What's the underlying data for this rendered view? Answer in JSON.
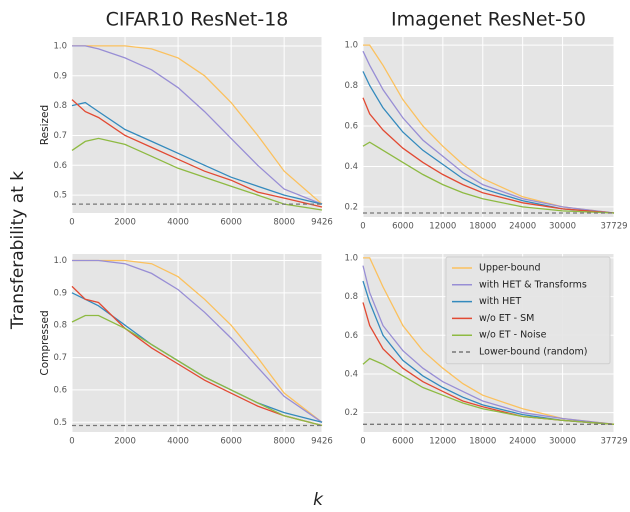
{
  "ylabel": "Transferability at k",
  "xlabel": "k",
  "chart_data": [
    {
      "type": "line",
      "title": "CIFAR10 ResNet-18",
      "ylabel": "Resized",
      "grid": true,
      "x": [
        0,
        500,
        1000,
        2000,
        3000,
        4000,
        5000,
        6000,
        7000,
        8000,
        9426
      ],
      "xlim": [
        0,
        9426
      ],
      "xticks": [
        0,
        2000,
        4000,
        6000,
        8000,
        9426
      ],
      "ylim": [
        0.44,
        1.03
      ],
      "yticks": [
        0.5,
        0.6,
        0.7,
        0.8,
        0.9,
        {
          "value": 1,
          "label": "1.0"
        }
      ],
      "series": [
        {
          "color": "#FBC15E",
          "values": [
            1.0,
            1.0,
            1.0,
            1.0,
            0.99,
            0.96,
            0.9,
            0.81,
            0.7,
            0.58,
            0.47
          ]
        },
        {
          "color": "#988ED5",
          "values": [
            1.0,
            1.0,
            0.99,
            0.96,
            0.92,
            0.86,
            0.78,
            0.69,
            0.6,
            0.52,
            0.47
          ]
        },
        {
          "color": "#348ABD",
          "values": [
            0.8,
            0.81,
            0.78,
            0.72,
            0.68,
            0.64,
            0.6,
            0.56,
            0.53,
            0.5,
            0.47
          ]
        },
        {
          "color": "#E24A33",
          "values": [
            0.82,
            0.78,
            0.76,
            0.7,
            0.66,
            0.62,
            0.58,
            0.55,
            0.51,
            0.49,
            0.46
          ]
        },
        {
          "color": "#8EBA42",
          "values": [
            0.65,
            0.68,
            0.69,
            0.67,
            0.63,
            0.59,
            0.56,
            0.53,
            0.5,
            0.47,
            0.45
          ]
        },
        {
          "color": "#777777",
          "dashed": true,
          "values": [
            0.47,
            0.47,
            0.47,
            0.47,
            0.47,
            0.47,
            0.47,
            0.47,
            0.47,
            0.47,
            0.47
          ]
        }
      ]
    },
    {
      "type": "line",
      "title": "Imagenet ResNet-50",
      "grid": true,
      "x": [
        0,
        1000,
        3000,
        6000,
        9000,
        12000,
        15000,
        18000,
        24000,
        30000,
        37729
      ],
      "xlim": [
        0,
        37729
      ],
      "xticks": [
        0,
        6000,
        12000,
        18000,
        24000,
        30000,
        37729
      ],
      "ylim": [
        0.15,
        1.04
      ],
      "yticks": [
        0.2,
        0.4,
        0.6,
        0.8,
        {
          "value": 1,
          "label": "1.0"
        }
      ],
      "series": [
        {
          "color": "#FBC15E",
          "values": [
            1.0,
            1.0,
            0.9,
            0.73,
            0.6,
            0.5,
            0.41,
            0.34,
            0.25,
            0.2,
            0.17
          ]
        },
        {
          "color": "#988ED5",
          "values": [
            0.97,
            0.9,
            0.78,
            0.64,
            0.53,
            0.45,
            0.37,
            0.31,
            0.24,
            0.2,
            0.17
          ]
        },
        {
          "color": "#348ABD",
          "values": [
            0.87,
            0.8,
            0.69,
            0.57,
            0.48,
            0.41,
            0.34,
            0.29,
            0.23,
            0.19,
            0.17
          ]
        },
        {
          "color": "#E24A33",
          "values": [
            0.74,
            0.66,
            0.58,
            0.49,
            0.42,
            0.36,
            0.31,
            0.27,
            0.22,
            0.19,
            0.17
          ]
        },
        {
          "color": "#8EBA42",
          "values": [
            0.5,
            0.52,
            0.48,
            0.42,
            0.36,
            0.31,
            0.27,
            0.24,
            0.2,
            0.18,
            0.17
          ]
        },
        {
          "color": "#777777",
          "dashed": true,
          "values": [
            0.17,
            0.17,
            0.17,
            0.17,
            0.17,
            0.17,
            0.17,
            0.17,
            0.17,
            0.17,
            0.17
          ]
        }
      ]
    },
    {
      "type": "line",
      "ylabel": "Compressed",
      "grid": true,
      "x": [
        0,
        500,
        1000,
        2000,
        3000,
        4000,
        5000,
        6000,
        7000,
        8000,
        9426
      ],
      "xlim": [
        0,
        9426
      ],
      "xticks": [
        0,
        2000,
        4000,
        6000,
        8000,
        9426
      ],
      "ylim": [
        0.47,
        1.02
      ],
      "yticks": [
        0.5,
        0.6,
        0.7,
        0.8,
        0.9,
        {
          "value": 1,
          "label": "1.0"
        }
      ],
      "series": [
        {
          "color": "#FBC15E",
          "values": [
            1.0,
            1.0,
            1.0,
            1.0,
            0.99,
            0.95,
            0.88,
            0.8,
            0.7,
            0.59,
            0.5
          ]
        },
        {
          "color": "#988ED5",
          "values": [
            1.0,
            1.0,
            1.0,
            0.99,
            0.96,
            0.91,
            0.84,
            0.76,
            0.67,
            0.58,
            0.5
          ]
        },
        {
          "color": "#348ABD",
          "values": [
            0.9,
            0.88,
            0.86,
            0.8,
            0.74,
            0.69,
            0.64,
            0.6,
            0.56,
            0.53,
            0.5
          ]
        },
        {
          "color": "#E24A33",
          "values": [
            0.92,
            0.88,
            0.87,
            0.79,
            0.73,
            0.68,
            0.63,
            0.59,
            0.55,
            0.52,
            0.49
          ]
        },
        {
          "color": "#8EBA42",
          "values": [
            0.81,
            0.83,
            0.83,
            0.79,
            0.74,
            0.69,
            0.64,
            0.6,
            0.56,
            0.52,
            0.49
          ]
        },
        {
          "color": "#777777",
          "dashed": true,
          "values": [
            0.49,
            0.49,
            0.49,
            0.49,
            0.49,
            0.49,
            0.49,
            0.49,
            0.49,
            0.49,
            0.49
          ]
        }
      ]
    },
    {
      "type": "line",
      "grid": true,
      "legend": "upper right",
      "x": [
        0,
        1000,
        3000,
        6000,
        9000,
        12000,
        15000,
        18000,
        24000,
        30000,
        37729
      ],
      "xlim": [
        0,
        37729
      ],
      "xticks": [
        0,
        6000,
        12000,
        18000,
        24000,
        30000,
        37729
      ],
      "ylim": [
        0.1,
        1.02
      ],
      "yticks": [
        0.2,
        0.4,
        0.6,
        0.8,
        {
          "value": 1,
          "label": "1.0"
        }
      ],
      "series": [
        {
          "name": "Upper-bound",
          "color": "#FBC15E",
          "values": [
            1.0,
            1.0,
            0.85,
            0.65,
            0.52,
            0.43,
            0.35,
            0.29,
            0.22,
            0.17,
            0.14
          ]
        },
        {
          "name": "with HET & Transforms",
          "color": "#988ED5",
          "values": [
            0.96,
            0.82,
            0.65,
            0.52,
            0.43,
            0.36,
            0.31,
            0.26,
            0.2,
            0.17,
            0.14
          ]
        },
        {
          "name": "with HET",
          "color": "#348ABD",
          "values": [
            0.88,
            0.77,
            0.6,
            0.47,
            0.39,
            0.33,
            0.28,
            0.24,
            0.19,
            0.16,
            0.14
          ]
        },
        {
          "name": "w/o ET - SM",
          "color": "#E24A33",
          "values": [
            0.77,
            0.65,
            0.53,
            0.43,
            0.36,
            0.31,
            0.26,
            0.23,
            0.18,
            0.16,
            0.14
          ]
        },
        {
          "name": "w/o ET - Noise",
          "color": "#8EBA42",
          "values": [
            0.45,
            0.48,
            0.45,
            0.39,
            0.33,
            0.29,
            0.25,
            0.22,
            0.18,
            0.16,
            0.14
          ]
        },
        {
          "name": "Lower-bound (random)",
          "color": "#777777",
          "dashed": true,
          "values": [
            0.14,
            0.14,
            0.14,
            0.14,
            0.14,
            0.14,
            0.14,
            0.14,
            0.14,
            0.14,
            0.14
          ]
        }
      ]
    }
  ]
}
